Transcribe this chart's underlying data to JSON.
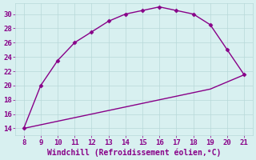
{
  "x_upper": [
    8,
    9,
    10,
    11,
    12,
    13,
    14,
    15,
    16,
    17,
    18,
    19,
    20,
    21
  ],
  "y_upper": [
    14,
    20,
    23.5,
    26,
    27.5,
    29,
    30,
    30.5,
    31,
    30.5,
    30,
    28.5,
    25,
    21.5
  ],
  "x_lower": [
    8,
    9,
    10,
    11,
    12,
    13,
    14,
    15,
    16,
    17,
    18,
    19,
    20,
    21
  ],
  "y_lower": [
    14,
    14.5,
    15.0,
    15.5,
    16.0,
    16.5,
    17.0,
    17.5,
    18.0,
    18.5,
    19.0,
    19.5,
    20.5,
    21.5
  ],
  "line_color": "#880088",
  "marker": "D",
  "marker_size": 2.5,
  "bg_color": "#d8f0f0",
  "grid_color": "#b8d8d8",
  "xlabel": "Windchill (Refroidissement éolien,°C)",
  "xlim": [
    7.5,
    21.5
  ],
  "ylim": [
    13.0,
    31.5
  ],
  "xticks": [
    8,
    9,
    10,
    11,
    12,
    13,
    14,
    15,
    16,
    17,
    18,
    19,
    20,
    21
  ],
  "yticks": [
    14,
    16,
    18,
    20,
    22,
    24,
    26,
    28,
    30
  ],
  "tick_label_color": "#880088",
  "xlabel_color": "#880088",
  "xlabel_fontsize": 7,
  "tick_fontsize": 6.5,
  "line_width": 1.0
}
